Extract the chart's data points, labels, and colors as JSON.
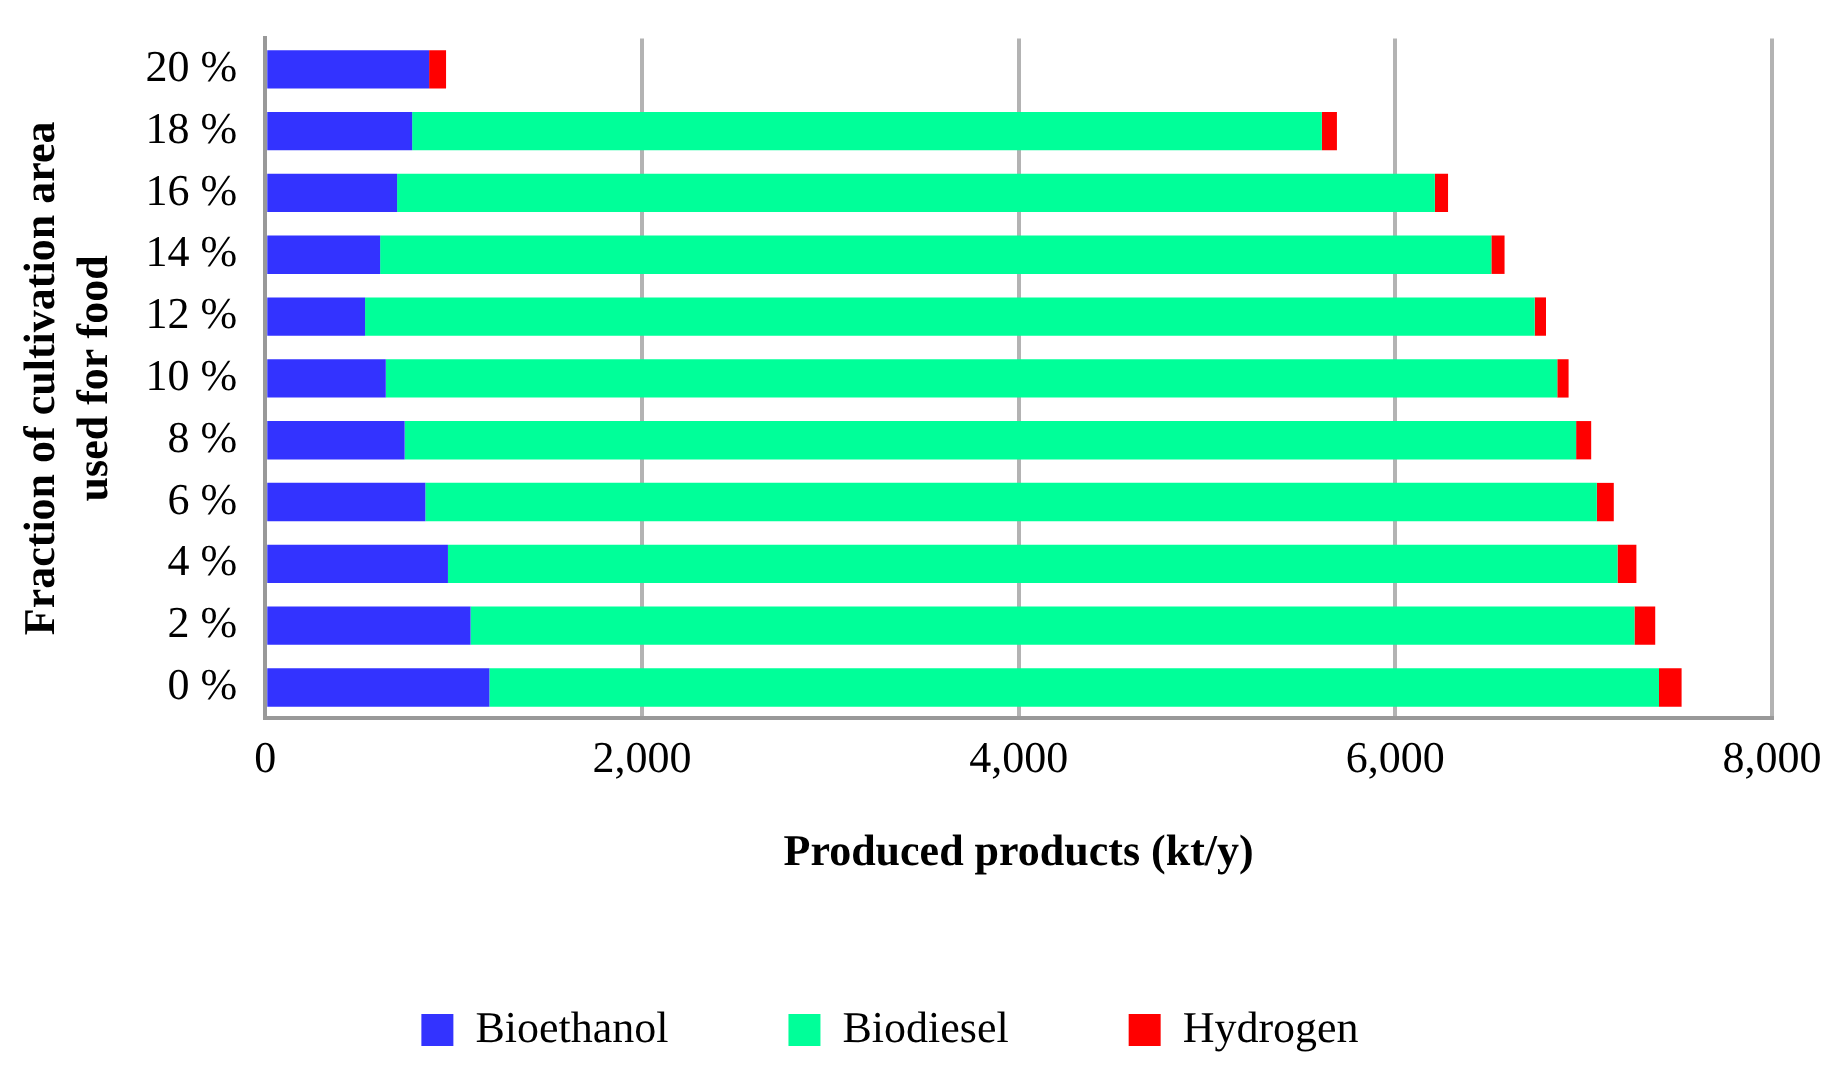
{
  "chart_data": {
    "type": "bar",
    "orientation": "horizontal",
    "stacked": true,
    "xlabel": "Produced products (kt/y)",
    "ylabel": "Fraction of cultivation area used for food",
    "categories": [
      "20 %",
      "18 %",
      "16 %",
      "14 %",
      "12 %",
      "10 %",
      "8 %",
      "6 %",
      "4 %",
      "2 %",
      "0 %"
    ],
    "series": [
      {
        "name": "Bioethanol",
        "color": "#3333ff",
        "values": [
          870,
          780,
          700,
          610,
          530,
          640,
          740,
          850,
          970,
          1090,
          1190
        ]
      },
      {
        "name": "Biodiesel",
        "color": "#00ff99",
        "values": [
          0,
          4830,
          5510,
          5900,
          6210,
          6220,
          6220,
          6220,
          6210,
          6180,
          6210
        ]
      },
      {
        "name": "Hydrogen",
        "color": "#ff0000",
        "values": [
          90,
          80,
          70,
          70,
          60,
          60,
          80,
          90,
          100,
          110,
          120
        ]
      }
    ],
    "xlim": [
      0,
      8000
    ],
    "xticks": [
      {
        "value": 0,
        "label": "0"
      },
      {
        "value": 2000,
        "label": "2,000"
      },
      {
        "value": 4000,
        "label": "4,000"
      },
      {
        "value": 6000,
        "label": "6,000"
      },
      {
        "value": 8000,
        "label": "8,000"
      }
    ],
    "grid": "x",
    "legend": "bottom"
  }
}
